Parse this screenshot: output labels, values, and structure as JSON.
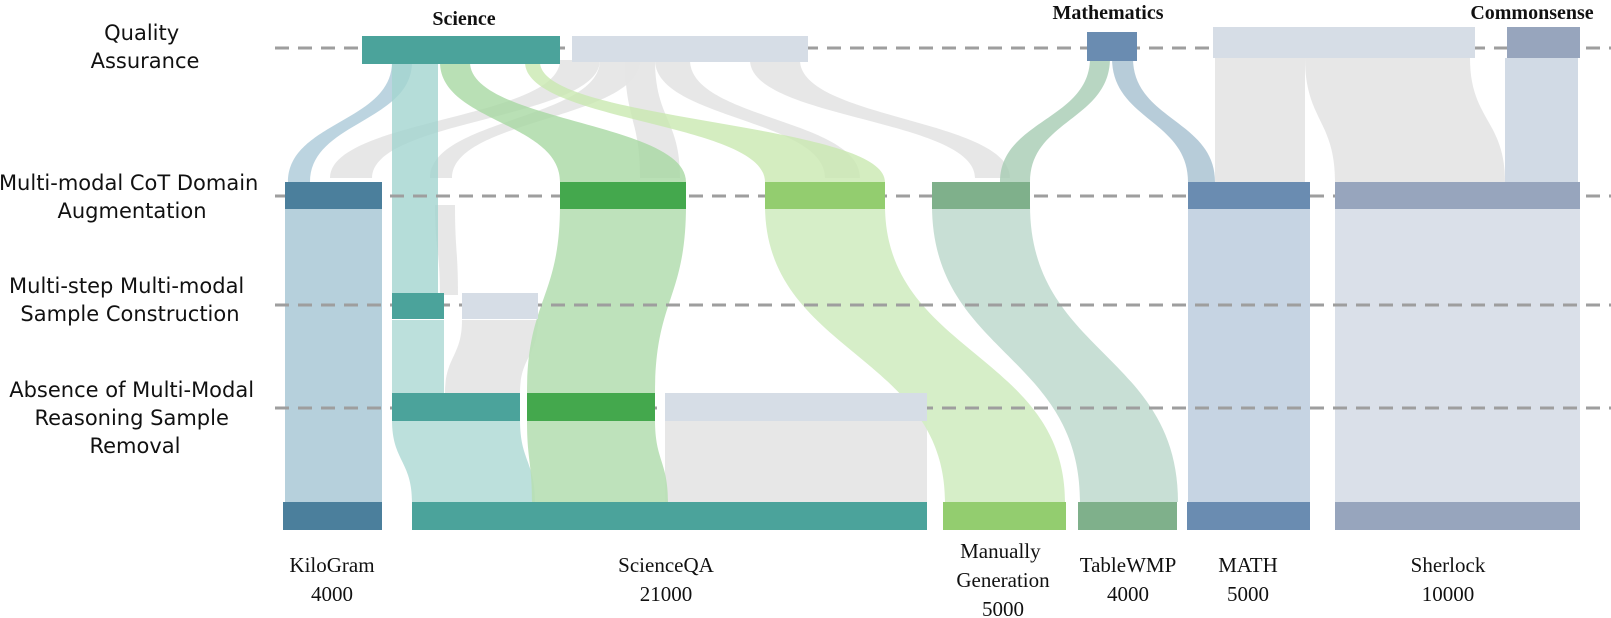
{
  "stages": [
    {
      "id": "qa",
      "lines": [
        "Quality",
        "Assurance"
      ]
    },
    {
      "id": "cot",
      "lines": [
        "Multi-modal CoT Domain",
        "Augmentation"
      ]
    },
    {
      "id": "msc",
      "lines": [
        "Multi-step Multi-modal",
        "Sample Construction"
      ]
    },
    {
      "id": "abs",
      "lines": [
        "Absence of Multi-Modal",
        "Reasoning Sample",
        "Removal"
      ]
    }
  ],
  "categories": [
    {
      "id": "science",
      "label": "Science"
    },
    {
      "id": "math",
      "label": "Mathematics"
    },
    {
      "id": "common",
      "label": "Commonsense"
    }
  ],
  "datasets": [
    {
      "id": "kilogram",
      "name": "KiloGram",
      "count": "4000"
    },
    {
      "id": "scienceqa",
      "name": "ScienceQA",
      "count": "21000"
    },
    {
      "id": "manual",
      "name": "Manually Generation",
      "name_lines": [
        "Manually",
        "Generation"
      ],
      "count": "5000"
    },
    {
      "id": "tablewmp",
      "name": "TableWMP",
      "count": "4000"
    },
    {
      "id": "math",
      "name": "MATH",
      "count": "5000"
    },
    {
      "id": "sherlock",
      "name": "Sherlock",
      "count": "10000"
    }
  ],
  "colors": {
    "teal": "#4ba39b",
    "steel_blue": "#4b7f9c",
    "green": "#44a84d",
    "light_green": "#93cd6f",
    "sage": "#7fb08b",
    "blue": "#6a8cb1",
    "slate": "#97a5bd",
    "grey_node": "#d6dde6",
    "grey_flow": "#e6e6e6",
    "guide_line": "#9e9e9e"
  }
}
